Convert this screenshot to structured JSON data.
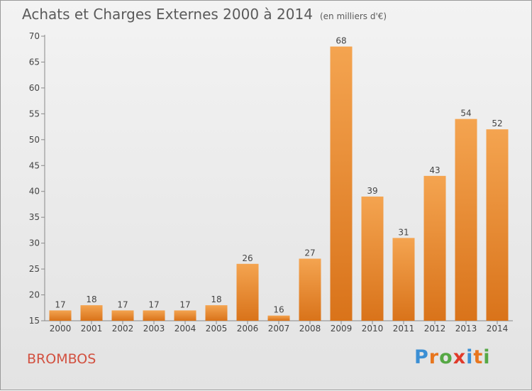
{
  "header": {
    "title": "Achats et Charges Externes 2000 à 2014",
    "unit": "(en milliers d'€)"
  },
  "footer": {
    "commune": "BROMBOS",
    "logo_text": "Proxiti"
  },
  "colors": {
    "bar_top": "#f4a450",
    "bar_bottom": "#d9731a",
    "commune": "#d2503f",
    "logo_letters": [
      "#3b8fd4",
      "#e8761e",
      "#56a845",
      "#e03a2a",
      "#3b8fd4",
      "#e8761e",
      "#56a845"
    ]
  },
  "chart_data": {
    "type": "bar",
    "categories": [
      "2000",
      "2001",
      "2002",
      "2003",
      "2004",
      "2005",
      "2006",
      "2007",
      "2008",
      "2009",
      "2010",
      "2011",
      "2012",
      "2013",
      "2014"
    ],
    "values": [
      17,
      18,
      17,
      17,
      17,
      18,
      26,
      16,
      27,
      68,
      39,
      31,
      43,
      54,
      52
    ],
    "ylim": [
      15,
      70
    ],
    "yticks": [
      15,
      20,
      25,
      30,
      35,
      40,
      45,
      50,
      55,
      60,
      65,
      70
    ],
    "grid": false,
    "data_labels": true
  }
}
